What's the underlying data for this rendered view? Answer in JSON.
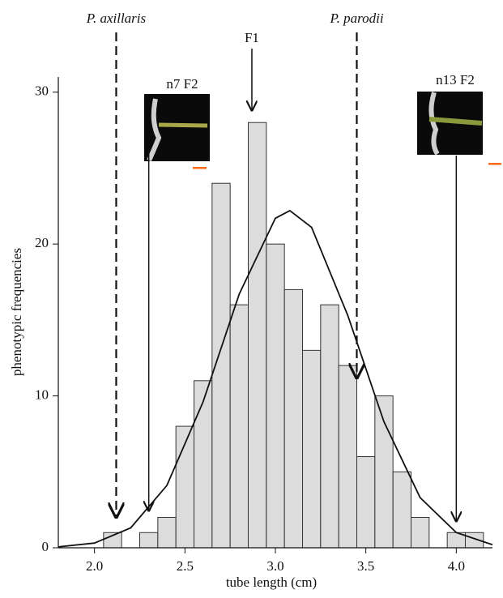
{
  "chart_data": {
    "type": "histogram",
    "xlabel": "tube length (cm)",
    "ylabel": "phenotypic frequencies",
    "bins": [
      2.05,
      2.15,
      2.25,
      2.35,
      2.45,
      2.55,
      2.65,
      2.75,
      2.85,
      2.95,
      3.05,
      3.15,
      3.25,
      3.35,
      3.45,
      3.55,
      3.65,
      3.75,
      3.85,
      3.95,
      4.05,
      4.15
    ],
    "counts": [
      1,
      0,
      1,
      2,
      8,
      11,
      24,
      16,
      28,
      20,
      17,
      13,
      16,
      12,
      6,
      10,
      5,
      2,
      0,
      1,
      1
    ],
    "color": "#dcdcdc",
    "curve": {
      "x": [
        1.8,
        2.0,
        2.2,
        2.4,
        2.6,
        2.8,
        3.0,
        3.08,
        3.2,
        3.4,
        3.6,
        3.8,
        4.0,
        4.2
      ],
      "y": [
        0.06,
        0.31,
        1.31,
        4.1,
        9.6,
        16.7,
        21.7,
        22.2,
        21.1,
        15.3,
        8.3,
        3.3,
        1.0,
        0.2
      ]
    },
    "annotations": [
      {
        "label": "P. axillaris",
        "x": 2.12,
        "style": "dashed"
      },
      {
        "label": "F1",
        "x": 2.87,
        "style": "solid"
      },
      {
        "label": "P. parodii",
        "x": 3.45,
        "style": "dashed"
      },
      {
        "label": "n7 F2",
        "x": 2.3,
        "style": "solid"
      },
      {
        "label": "n13 F2",
        "x": 4.0,
        "style": "solid"
      }
    ],
    "xlim": [
      1.8,
      4.2
    ],
    "ylim": [
      0,
      31
    ],
    "xticks": [
      {
        "value": 2,
        "label": "2.0"
      },
      2.5,
      {
        "value": 3,
        "label": "3.0"
      },
      3.5,
      {
        "value": 4,
        "label": "4.0"
      }
    ],
    "yticks": [
      0,
      10,
      20,
      30
    ]
  }
}
